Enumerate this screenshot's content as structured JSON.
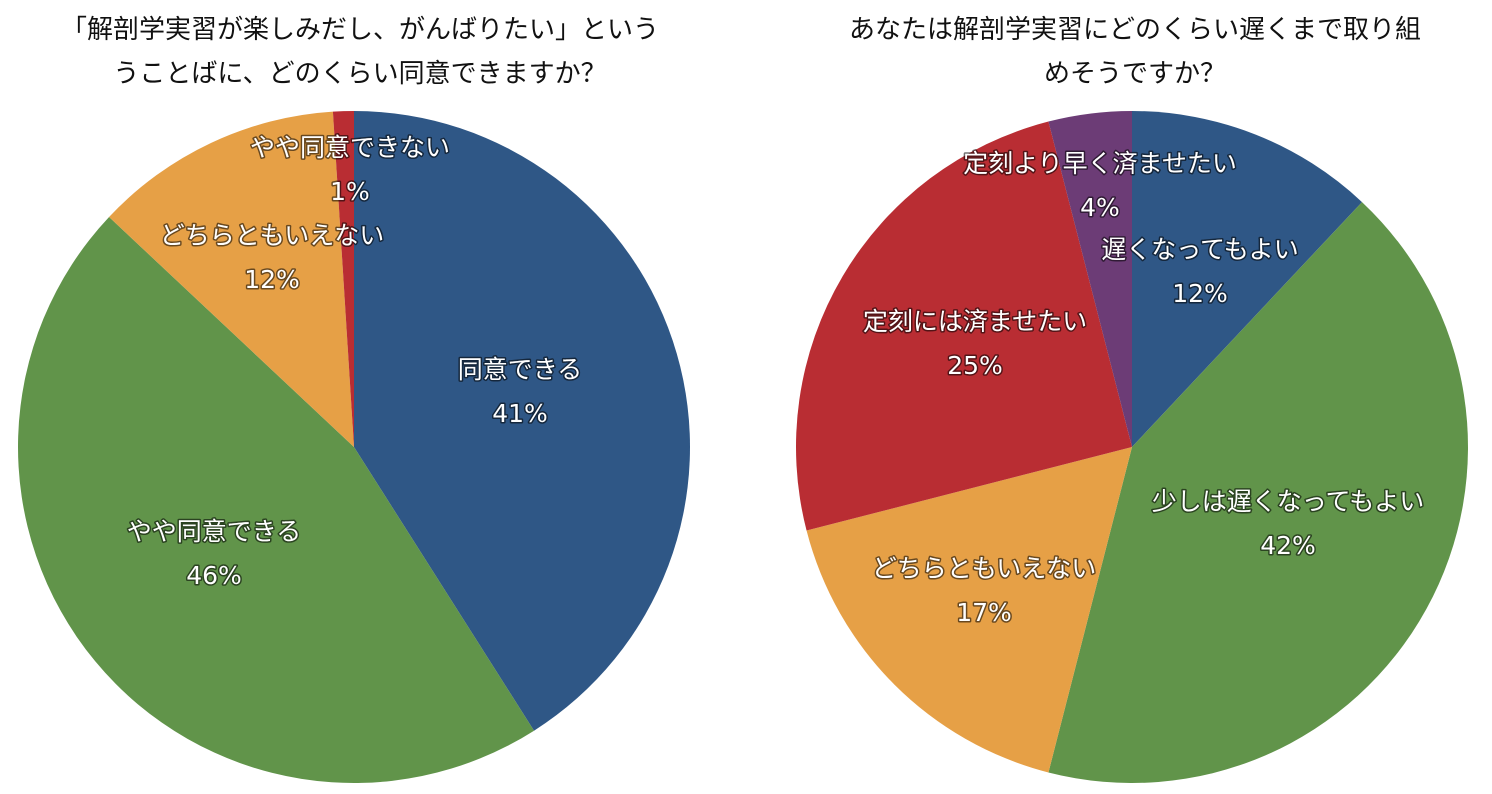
{
  "chart_data": [
    {
      "type": "pie",
      "title": "「解剖学実習が楽しみだし、がんばりたい」という\nうことばに、どのくらい同意できますか？",
      "slices": [
        {
          "label": "同意できる",
          "value": 41,
          "display": "41%",
          "color": "#2f5786"
        },
        {
          "label": "やや同意できる",
          "value": 46,
          "display": "46%",
          "color": "#61944a"
        },
        {
          "label": "どちらともいえない",
          "value": 12,
          "display": "12%",
          "color": "#e6a046"
        },
        {
          "label": "やや同意できない",
          "value": 1,
          "display": "1%",
          "color": "#b92d33"
        }
      ]
    },
    {
      "type": "pie",
      "title": "あなたは解剖学実習にどのくらい遅くまで取り組\nめそうですか？",
      "slices": [
        {
          "label": "遅くなってもよい",
          "value": 12,
          "display": "12%",
          "color": "#2f5786"
        },
        {
          "label": "少しは遅くなってもよい",
          "value": 42,
          "display": "42%",
          "color": "#61944a"
        },
        {
          "label": "どちらともいえない",
          "value": 17,
          "display": "17%",
          "color": "#e6a046"
        },
        {
          "label": "定刻には済ませたい",
          "value": 25,
          "display": "25%",
          "color": "#b92d33"
        },
        {
          "label": "定刻より早く済ませたい",
          "value": 4,
          "display": "4%",
          "color": "#6c3c76"
        }
      ]
    }
  ]
}
